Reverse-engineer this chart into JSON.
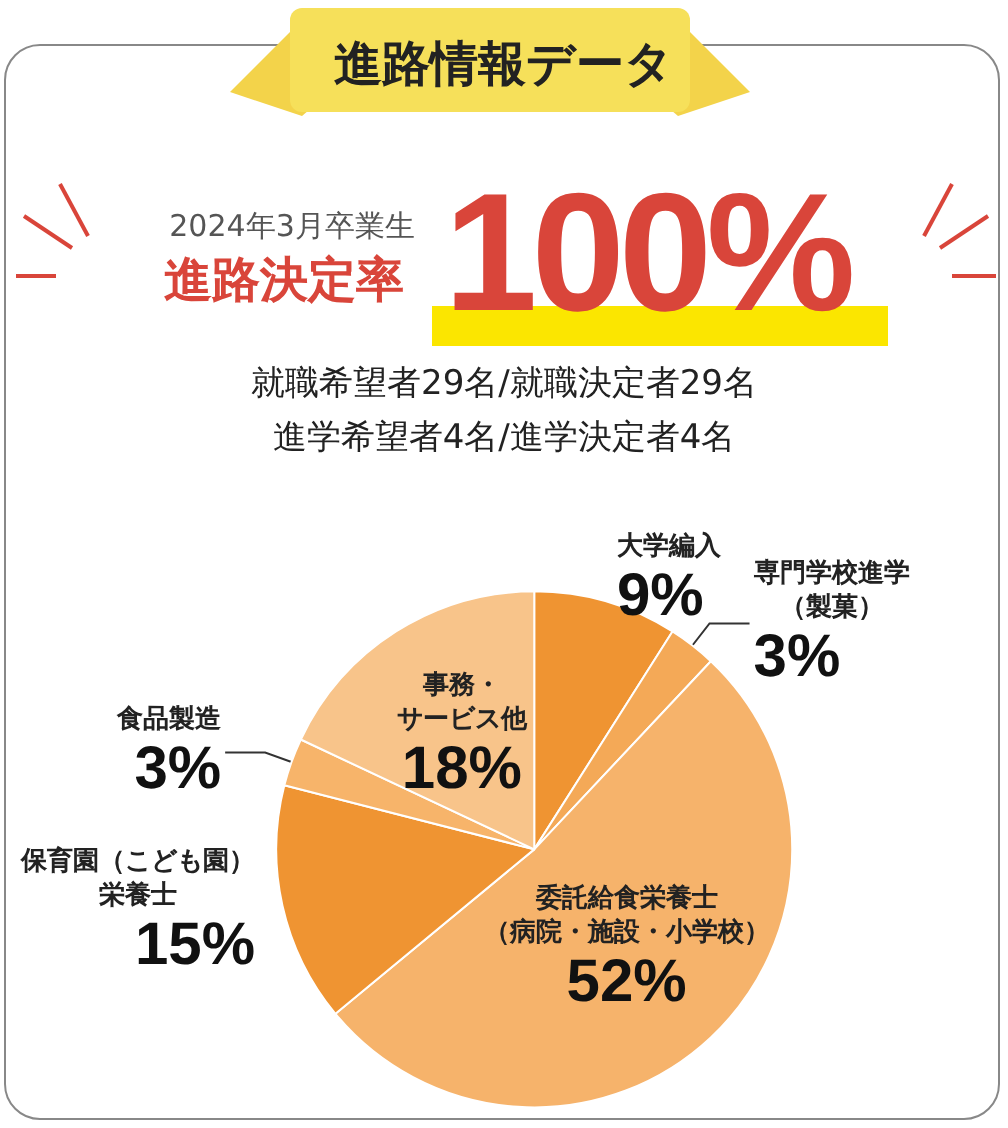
{
  "chart_data": {
    "type": "pie",
    "title": "進路情報データ",
    "annotations": [
      "2024年3月卒業生",
      "進路決定率",
      "100%",
      "就職希望者29名/就職決定者29名",
      "進学希望者4名/進学決定者4名"
    ],
    "categories": [
      "大学編入",
      "専門学校進学（製菓）",
      "委託給食栄養士（病院・施設・小学校）",
      "保育園（こども園）栄養士",
      "食品製造",
      "事務・サービス他"
    ],
    "values": [
      9,
      3,
      52,
      15,
      3,
      18
    ],
    "colors": [
      "#ef9432",
      "#f4a957",
      "#f6b36b",
      "#ef9432",
      "#f7b46a",
      "#f8c48a"
    ],
    "value_labels": [
      "9%",
      "3%",
      "52%",
      "15%",
      "3%",
      "18%"
    ]
  }
}
